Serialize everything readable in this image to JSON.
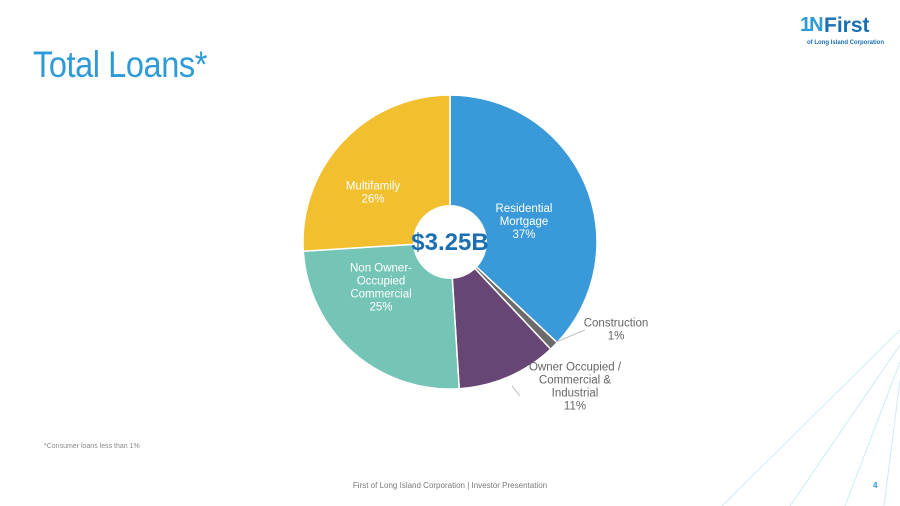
{
  "slide": {
    "title": "Total Loans*",
    "footnote": "*Consumer loans less than 1%",
    "footer": "First of Long Island Corporation | Investor Presentation",
    "page_number": "4"
  },
  "logo": {
    "mark": "1N",
    "name": "First",
    "subtitle": "of Long Island Corporation"
  },
  "colors": {
    "title": "#2e9ad8",
    "accent": "#2e9ad8",
    "center_label": "#1a6fb3"
  },
  "chart_data": {
    "type": "pie",
    "style": "donut",
    "title": "",
    "center_label": "$3.25B",
    "slices": [
      {
        "name": "Residential Mortgage",
        "lines": [
          "Residential",
          "Mortgage",
          "37%"
        ],
        "value": 37,
        "color": "#3a9ad9",
        "label_color": "#ffffff",
        "label_placement": "inside"
      },
      {
        "name": "Construction",
        "lines": [
          "Construction",
          "1%"
        ],
        "value": 1,
        "color": "#6b6b6b",
        "label_color": "#666666",
        "label_placement": "outside"
      },
      {
        "name": "Owner Occupied / Commercial & Industrial",
        "lines": [
          "Owner Occupied /",
          "Commercial &",
          "Industrial",
          "11%"
        ],
        "value": 11,
        "color": "#674574",
        "label_color": "#666666",
        "label_placement": "outside"
      },
      {
        "name": "Non Owner-Occupied Commercial",
        "lines": [
          "Non Owner-",
          "Occupied",
          "Commercial",
          "25%"
        ],
        "value": 25,
        "color": "#74c5b6",
        "label_color": "#ffffff",
        "label_placement": "inside"
      },
      {
        "name": "Multifamily",
        "lines": [
          "Multifamily",
          "26%"
        ],
        "value": 26,
        "color": "#f2c02e",
        "label_color": "#ffffff",
        "label_placement": "inside"
      }
    ]
  }
}
